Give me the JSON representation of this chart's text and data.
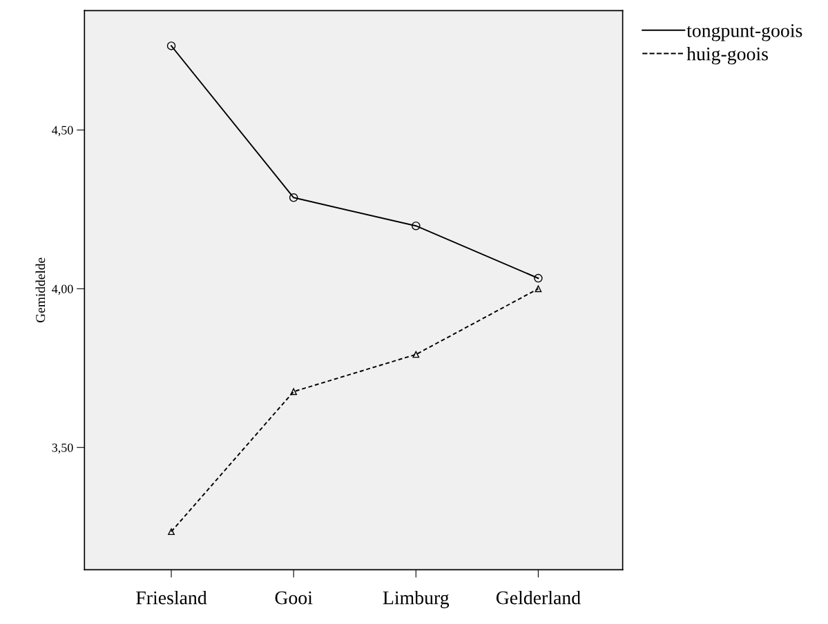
{
  "chart_data": {
    "type": "line",
    "ylabel": "Gemiddelde",
    "categories": [
      "Friesland",
      "Gooi",
      "Limburg",
      "Gelderland"
    ],
    "series": [
      {
        "name": "tongpunt-goois",
        "color": "#000000",
        "values": [
          4.765,
          4.287,
          4.198,
          4.033
        ],
        "marker": "circle",
        "line_style": "solid"
      },
      {
        "name": "huig-goois",
        "color": "#000000",
        "values": [
          3.235,
          3.676,
          3.793,
          4.0
        ],
        "marker": "triangle",
        "line_style": "dashed"
      }
    ],
    "ylim": [
      3.115,
      4.876
    ],
    "yticks": [
      {
        "value": 3.5,
        "label": "3,50"
      },
      {
        "value": 4.0,
        "label": "4,00"
      },
      {
        "value": 4.5,
        "label": "4,50"
      }
    ],
    "grid": false,
    "legend": "top right"
  }
}
